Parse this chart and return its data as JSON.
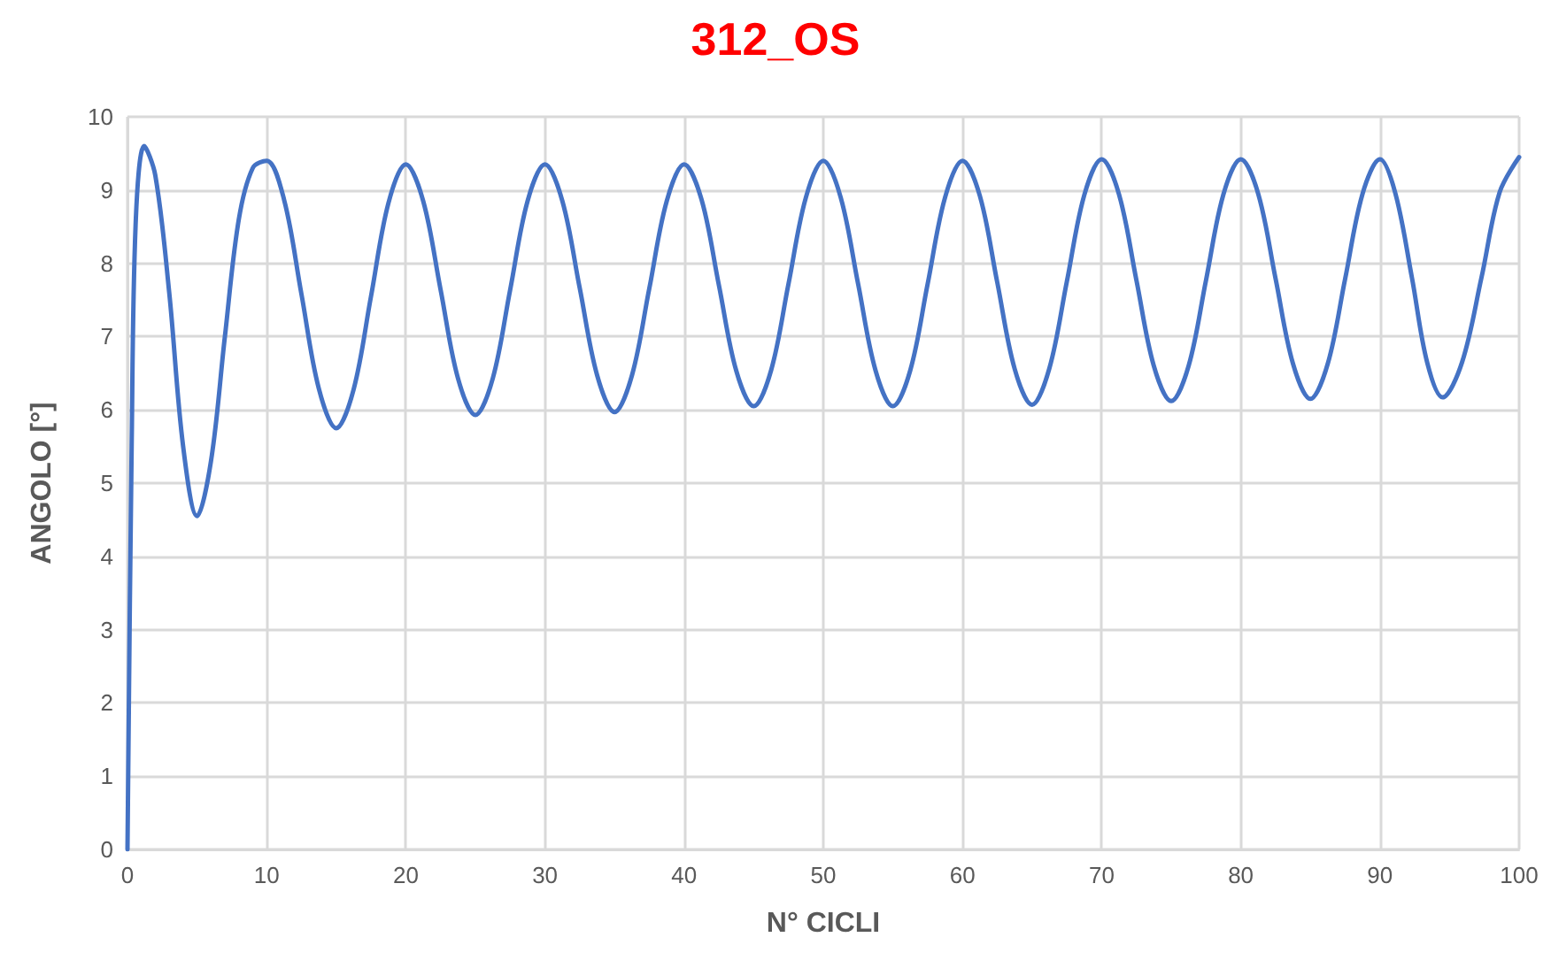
{
  "chart_data": {
    "type": "line",
    "title": "312_OS",
    "xlabel": "N° CICLI",
    "ylabel": "ANGOLO [°]",
    "x": [
      0,
      0.3,
      0.6,
      1.2,
      2,
      3,
      4,
      5,
      6,
      7,
      8,
      9,
      10,
      11.25,
      12.5,
      13.75,
      15,
      16.25,
      17.5,
      18.75,
      20,
      21.25,
      22.5,
      23.75,
      25,
      26.25,
      27.5,
      28.75,
      30,
      31.25,
      32.5,
      33.75,
      35,
      36.25,
      37.5,
      38.75,
      40,
      41.25,
      42.5,
      43.75,
      45,
      46.25,
      47.5,
      48.75,
      50,
      51.25,
      52.5,
      53.75,
      55,
      56.25,
      57.5,
      58.75,
      60,
      61.25,
      62.5,
      63.75,
      65,
      66.25,
      67.5,
      68.75,
      70,
      71.25,
      72.5,
      73.75,
      75,
      76.25,
      77.5,
      78.75,
      80,
      81.25,
      82.5,
      83.75,
      85,
      86.25,
      87.5,
      88.75,
      90,
      91.1,
      92.3,
      93.4,
      94.5,
      95.9,
      97.3,
      98.6,
      100
    ],
    "series": [
      {
        "color": "#4472c4",
        "values": [
          0,
          5.5,
          8.6,
          9.6,
          9.2,
          7.6,
          5.5,
          4.55,
          5.3,
          7.0,
          8.6,
          9.3,
          9.4,
          8.87,
          7.58,
          6.29,
          5.75,
          6.28,
          7.55,
          8.82,
          9.35,
          8.85,
          7.64,
          6.43,
          5.93,
          6.43,
          7.64,
          8.85,
          9.35,
          8.85,
          7.66,
          6.47,
          5.97,
          6.47,
          7.66,
          8.85,
          9.35,
          8.87,
          7.7,
          6.53,
          6.05,
          6.54,
          7.72,
          8.9,
          9.4,
          8.9,
          7.72,
          6.54,
          6.05,
          6.54,
          7.72,
          8.9,
          9.4,
          8.92,
          7.74,
          6.56,
          6.07,
          6.57,
          7.75,
          8.93,
          9.42,
          8.94,
          7.77,
          6.6,
          6.12,
          6.6,
          7.77,
          8.94,
          9.42,
          8.95,
          7.79,
          6.63,
          6.15,
          6.63,
          7.79,
          8.95,
          9.42,
          8.96,
          7.8,
          6.64,
          6.17,
          6.65,
          7.81,
          8.97,
          9.45
        ]
      }
    ],
    "xlim": [
      0,
      100
    ],
    "xticks": [
      0,
      10,
      20,
      30,
      40,
      50,
      60,
      70,
      80,
      90,
      100
    ],
    "ylim": [
      0,
      10
    ],
    "yticks": [
      0,
      1,
      2,
      3,
      4,
      5,
      6,
      7,
      8,
      9,
      10
    ],
    "grid": true,
    "marker": "none",
    "line_style": "solid"
  }
}
